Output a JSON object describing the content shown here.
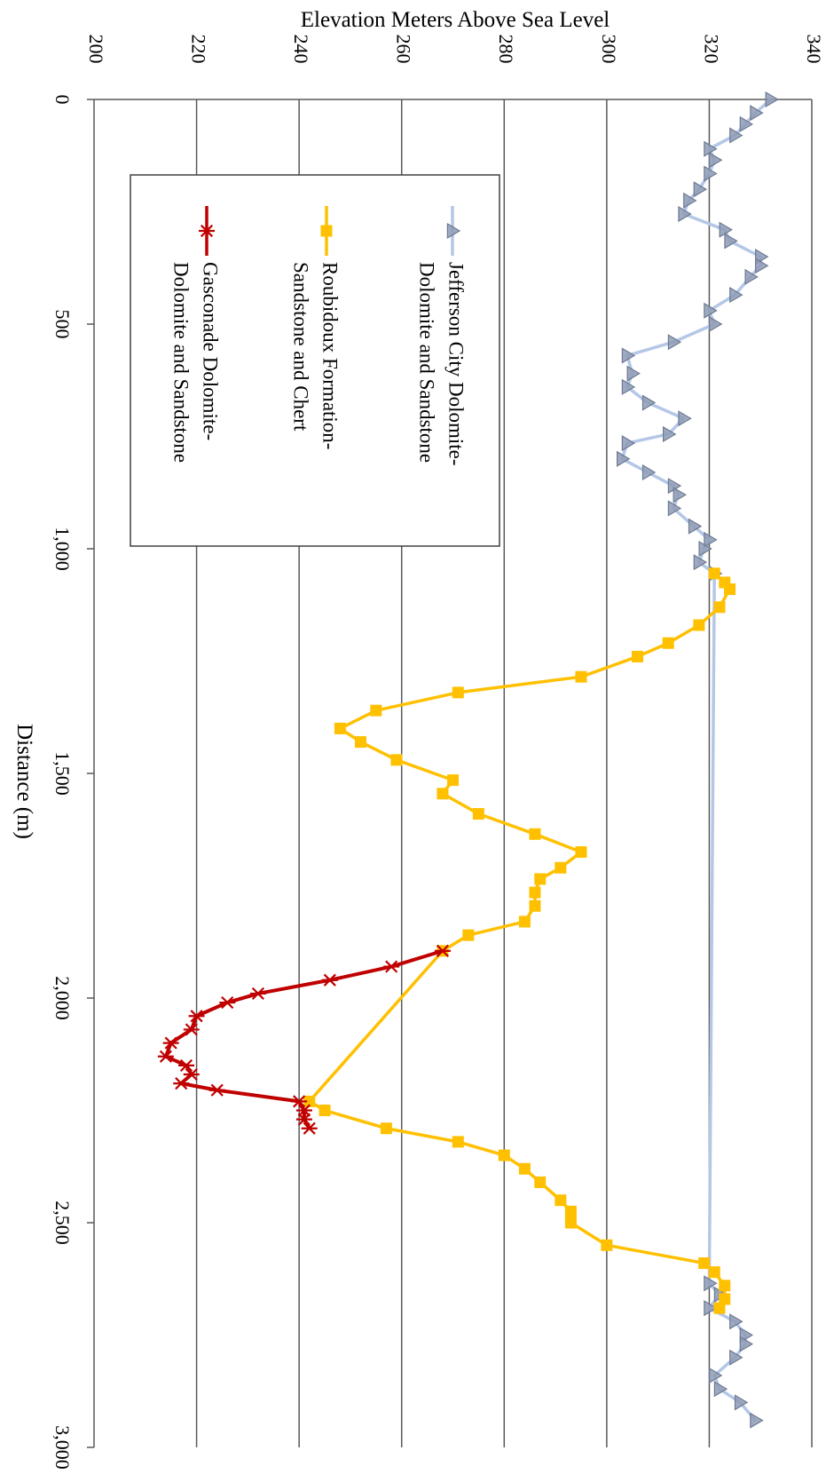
{
  "chart_data": {
    "type": "line",
    "orientation": "rotated-90-clockwise",
    "title": "",
    "xlabel": "Distance (m)",
    "ylabel": "Elevation Meters Above Sea Level",
    "xlim": [
      0,
      3000
    ],
    "ylim": [
      200,
      340
    ],
    "x_ticks": [
      "0",
      "500",
      "1,000",
      "1,500",
      "2,000",
      "2,500",
      "3,000"
    ],
    "y_ticks": [
      "200",
      "220",
      "240",
      "260",
      "280",
      "300",
      "320",
      "340"
    ],
    "grid": "major gridlines on elevation axis",
    "legend_placement": "inside, upper-left of plot area",
    "series": [
      {
        "name": "Jefferson City Dolomite-Dolomite and Sandstone",
        "legend_lines": [
          "Jefferson City Dolomite-",
          "Dolomite and Sandstone"
        ],
        "color": "#b4c7e7",
        "marker": "triangle",
        "marker_color": "#8e9bb5",
        "points": [
          [
            0,
            332
          ],
          [
            30,
            329
          ],
          [
            55,
            327
          ],
          [
            80,
            325
          ],
          [
            110,
            320
          ],
          [
            135,
            321
          ],
          [
            165,
            320
          ],
          [
            200,
            318
          ],
          [
            225,
            316
          ],
          [
            255,
            315
          ],
          [
            290,
            323
          ],
          [
            315,
            324
          ],
          [
            350,
            330
          ],
          [
            370,
            330
          ],
          [
            395,
            328
          ],
          [
            435,
            325
          ],
          [
            470,
            320
          ],
          [
            500,
            321
          ],
          [
            540,
            313
          ],
          [
            570,
            304
          ],
          [
            610,
            305
          ],
          [
            640,
            304
          ],
          [
            675,
            308
          ],
          [
            710,
            315
          ],
          [
            745,
            312
          ],
          [
            765,
            304
          ],
          [
            800,
            303
          ],
          [
            830,
            308
          ],
          [
            860,
            313
          ],
          [
            880,
            314
          ],
          [
            910,
            313
          ],
          [
            950,
            317
          ],
          [
            980,
            320
          ],
          [
            1000,
            319
          ],
          [
            1030,
            318
          ],
          [
            1055,
            321
          ],
          [
            2635,
            320
          ],
          [
            2660,
            322
          ],
          [
            2690,
            320
          ],
          [
            2720,
            325
          ],
          [
            2750,
            327
          ],
          [
            2770,
            327
          ],
          [
            2800,
            325
          ],
          [
            2840,
            321
          ],
          [
            2870,
            322
          ],
          [
            2900,
            326
          ],
          [
            2940,
            329
          ]
        ]
      },
      {
        "name": "Roubidoux Formation-Sandstone and Chert",
        "legend_lines": [
          "Roubidoux Formation-",
          "Sandstone and Chert"
        ],
        "color": "#ffc000",
        "marker": "square",
        "points": [
          [
            1055,
            321
          ],
          [
            1075,
            323
          ],
          [
            1090,
            324
          ],
          [
            1130,
            322
          ],
          [
            1170,
            318
          ],
          [
            1210,
            312
          ],
          [
            1240,
            306
          ],
          [
            1285,
            295
          ],
          [
            1320,
            271
          ],
          [
            1360,
            255
          ],
          [
            1400,
            248
          ],
          [
            1430,
            252
          ],
          [
            1470,
            259
          ],
          [
            1515,
            270
          ],
          [
            1545,
            268
          ],
          [
            1590,
            275
          ],
          [
            1635,
            286
          ],
          [
            1675,
            295
          ],
          [
            1710,
            291
          ],
          [
            1735,
            287
          ],
          [
            1765,
            286
          ],
          [
            1795,
            286
          ],
          [
            1830,
            284
          ],
          [
            1860,
            273
          ],
          [
            1895,
            268
          ],
          [
            2230,
            242
          ],
          [
            2250,
            245
          ],
          [
            2290,
            257
          ],
          [
            2320,
            271
          ],
          [
            2350,
            280
          ],
          [
            2380,
            284
          ],
          [
            2410,
            287
          ],
          [
            2450,
            291
          ],
          [
            2475,
            293
          ],
          [
            2500,
            293
          ],
          [
            2550,
            300
          ],
          [
            2590,
            319
          ],
          [
            2610,
            321
          ],
          [
            2640,
            323
          ],
          [
            2670,
            323
          ],
          [
            2690,
            322
          ]
        ]
      },
      {
        "name": "Gasconade Dolomite-Dolomite and Sandstone",
        "legend_lines": [
          "Gasconade Dolomite-",
          "Dolomite and Sandstone"
        ],
        "color": "#c00000",
        "marker": "star",
        "points": [
          [
            1895,
            268
          ],
          [
            1930,
            258
          ],
          [
            1960,
            246
          ],
          [
            1990,
            232
          ],
          [
            2010,
            226
          ],
          [
            2040,
            220
          ],
          [
            2070,
            219
          ],
          [
            2100,
            215
          ],
          [
            2130,
            214
          ],
          [
            2150,
            218
          ],
          [
            2170,
            219
          ],
          [
            2190,
            217
          ],
          [
            2205,
            224
          ],
          [
            2230,
            240
          ],
          [
            2250,
            241
          ],
          [
            2270,
            241
          ],
          [
            2290,
            242
          ]
        ]
      }
    ]
  }
}
